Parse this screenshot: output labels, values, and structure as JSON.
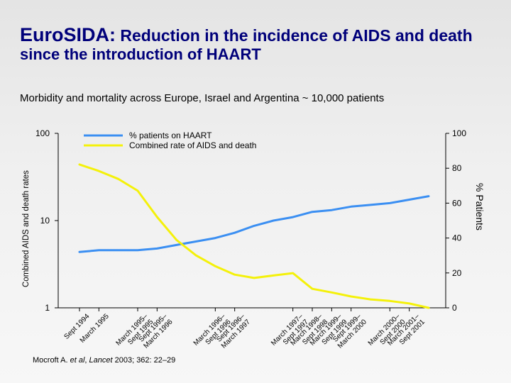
{
  "header": {
    "title_brand": "EuroSIDA:",
    "title_rest": "Reduction in the incidence of AIDS and death",
    "title_line2": "since the introduction of HAART",
    "subtitle": "Morbidity and mortality across Europe, Israel and Argentina ~ 10,000 patients"
  },
  "citation": {
    "authors": "Mocroft A.",
    "etal": "et al",
    "journal": "Lancet",
    "ref": "2003; 362: 22–29"
  },
  "colors": {
    "title": "#00007a",
    "haart_line": "#3b8ff2",
    "aids_line": "#f4f10a",
    "axis": "#000000"
  },
  "chart_data": {
    "type": "line",
    "x": [
      "Sept 1994",
      "March 1995",
      "Sept 1995",
      "March 1995–Sept 1995",
      "Sept 1995–March 1996",
      "March 1996",
      "Sept 1996",
      "March 1996–Sept 1996",
      "Sept 1996–March 1997",
      "March 1997",
      "Sept 1997",
      "March 1997–Sept 1997",
      "March 1998–Sept 1998",
      "March 1999–Sept 1999",
      "Sept 1999–March 2000",
      "Sept 1999",
      "March 2000–Sept 2000",
      "March 2001–Sept 2001",
      "Sept 2001"
    ],
    "x_tick_labels": [
      [
        "Sept 1994"
      ],
      [
        "March 1995"
      ],
      [
        "March 1995–",
        "Sept 1995"
      ],
      [
        "Sept 1995–",
        "March 1996"
      ],
      [
        "March 1996–",
        "Sept 1996"
      ],
      [
        "Sept 1996–",
        "March 1997"
      ],
      [
        "March 1997–",
        "Sept 1997"
      ],
      [
        "March 1998–",
        "Sept 1998"
      ],
      [
        "March 1999–",
        "Sept 1999"
      ],
      [
        "Sept 1999–",
        "March 2000"
      ],
      [
        "March 2000–",
        "Sept 2000"
      ],
      [
        "March 2001–",
        "Sept 2001"
      ]
    ],
    "x_tick_index": [
      0,
      1,
      3,
      4,
      7,
      8,
      11,
      12,
      13,
      14,
      16,
      17
    ],
    "series": [
      {
        "name": "% patients on HAART",
        "axis": "right",
        "values": [
          32,
          33,
          33,
          33,
          34,
          36,
          38,
          40,
          43,
          47,
          50,
          52,
          55,
          56,
          58,
          59,
          60,
          62,
          64
        ]
      },
      {
        "name": "Combined rate of AIDS and death",
        "axis": "left",
        "values": [
          44,
          37,
          30,
          22,
          11,
          6.0,
          4.0,
          3.0,
          2.4,
          2.2,
          2.35,
          2.5,
          1.65,
          1.5,
          1.35,
          1.25,
          1.2,
          1.12,
          1.0
        ]
      }
    ],
    "y_left": {
      "label": "Combined AIDS and death rates",
      "scale": "log",
      "lim": [
        1,
        100
      ],
      "ticks": [
        "1",
        "10",
        "100"
      ]
    },
    "y_right": {
      "label": "% Patients",
      "scale": "linear",
      "lim": [
        0,
        100
      ],
      "ticks": [
        "0",
        "20",
        "40",
        "60",
        "80",
        "100"
      ]
    },
    "legend": "top-left",
    "grid": false
  }
}
